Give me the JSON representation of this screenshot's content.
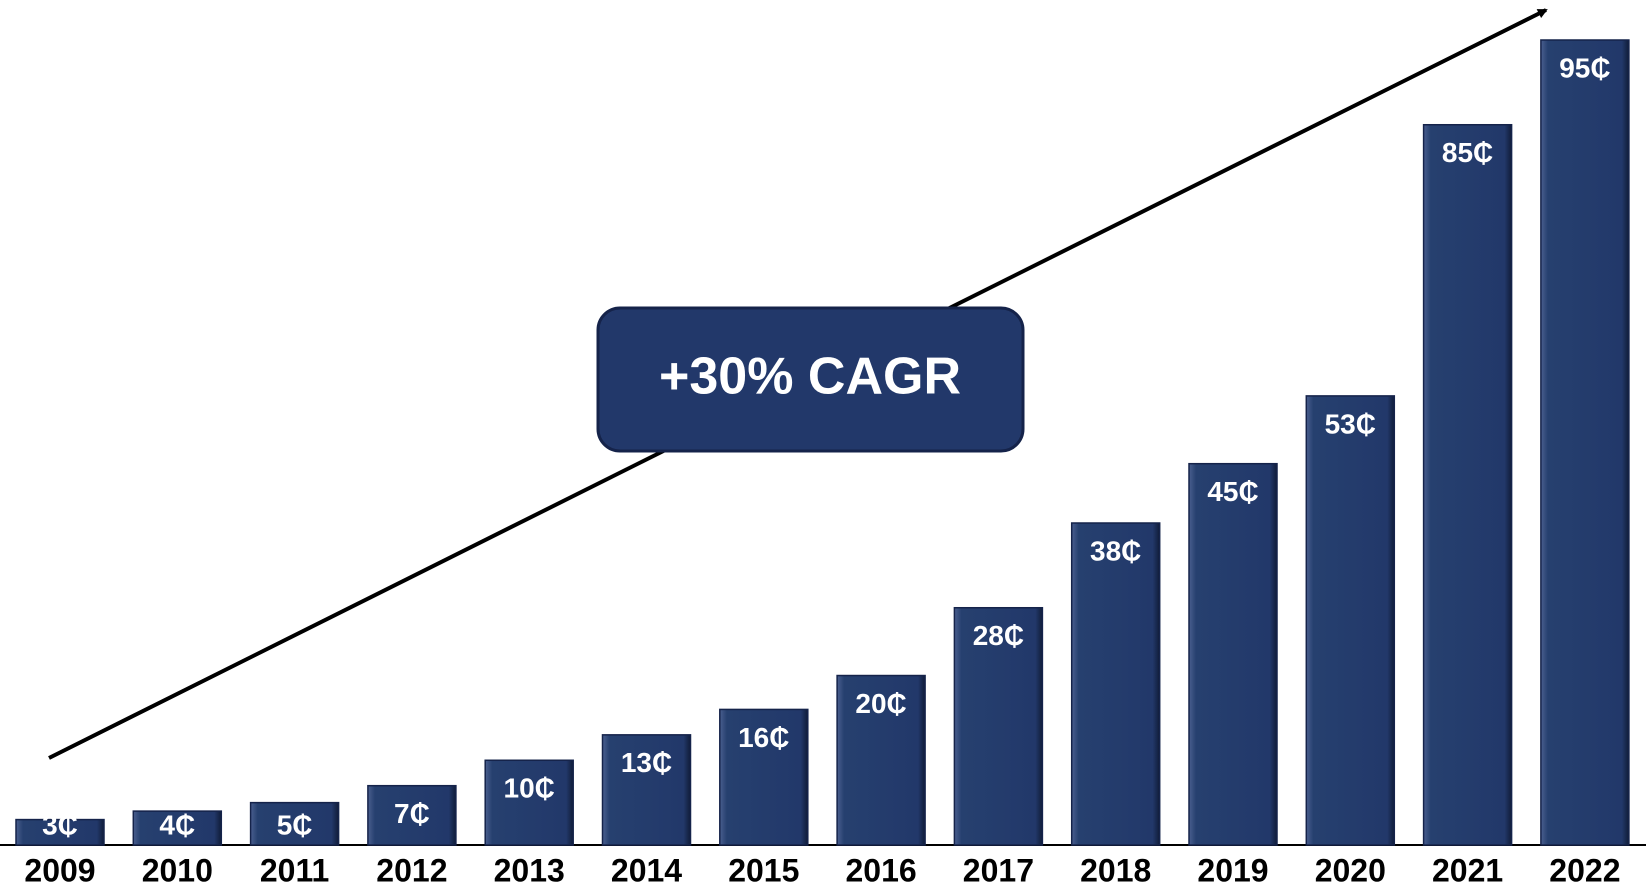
{
  "chart_data": {
    "type": "bar",
    "categories": [
      "2009",
      "2010",
      "2011",
      "2012",
      "2013",
      "2014",
      "2015",
      "2016",
      "2017",
      "2018",
      "2019",
      "2020",
      "2021",
      "2022"
    ],
    "values": [
      3,
      4,
      5,
      7,
      10,
      13,
      16,
      20,
      28,
      38,
      45,
      53,
      85,
      95
    ],
    "value_labels": [
      "3₵",
      "4₵",
      "5₵",
      "7₵",
      "10₵",
      "13₵",
      "16₵",
      "20₵",
      "28₵",
      "38₵",
      "45₵",
      "53₵",
      "85₵",
      "95₵"
    ],
    "color": "#22386a",
    "annotation": "+30% CAGR"
  }
}
